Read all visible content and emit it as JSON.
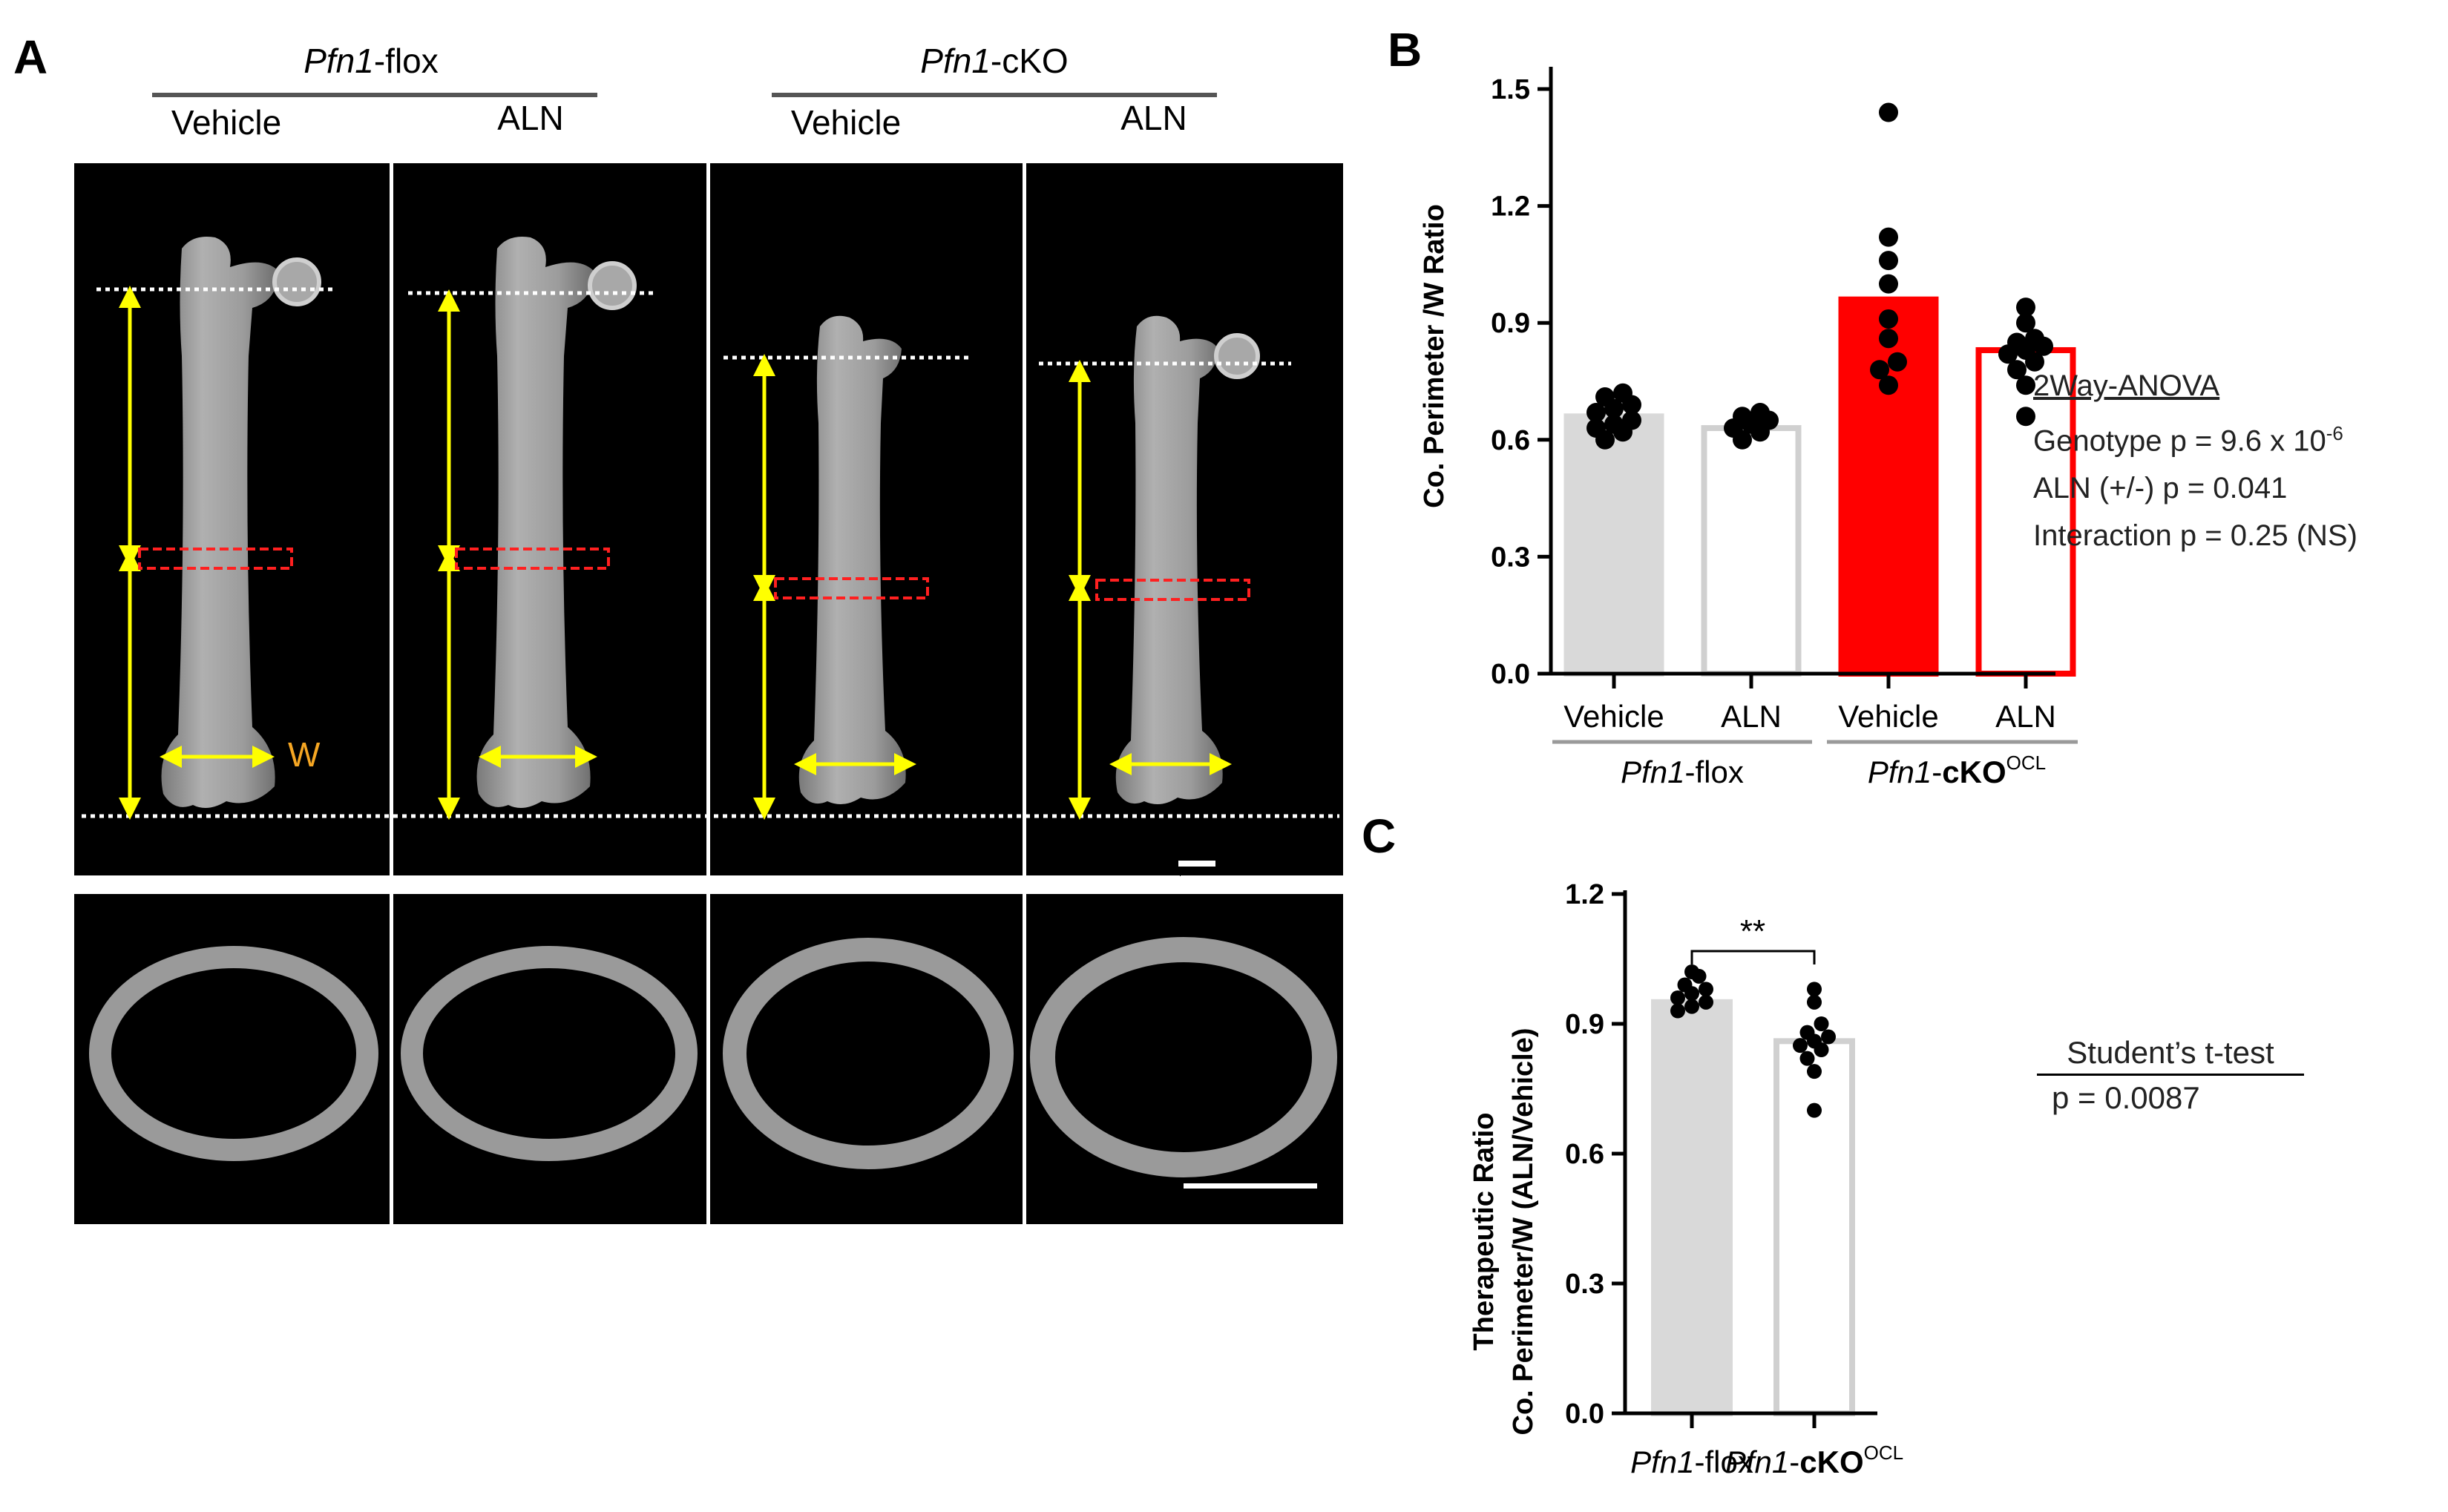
{
  "panel_a": {
    "letter": "A",
    "groups": [
      {
        "label_italic": "Pfn1",
        "label_rest": "-flox",
        "treatments": [
          "Vehicle",
          "ALN"
        ]
      },
      {
        "label_italic": "Pfn1",
        "label_rest": "-cKO",
        "treatments": [
          "Vehicle",
          "ALN"
        ]
      }
    ],
    "width_marker": "W",
    "colors": {
      "arrow": "#ffff00",
      "roi": "#ff2020",
      "w_label": "#f5a623",
      "guide": "#ffffff"
    }
  },
  "panel_b": {
    "letter": "B",
    "stats": {
      "title": "2Way-ANOVA",
      "genotype_prefix": "Genotype  p = 9.6 x 10",
      "genotype_exp": "-6",
      "aln": "ALN (+/-) p = 0.041",
      "interaction": "Interaction p = 0.25 (NS)"
    },
    "chart_data": {
      "type": "bar",
      "ylabel": "Co. Perimeter /W Ratio",
      "ylim": [
        0,
        1.5
      ],
      "yticks": [
        "0.0",
        "0.3",
        "0.6",
        "0.9",
        "1.2",
        "1.5"
      ],
      "categories": [
        "Vehicle",
        "ALN",
        "Vehicle",
        "ALN"
      ],
      "groups": [
        {
          "italic": "Pfn1",
          "rest": "-flox",
          "bold": "",
          "sup": ""
        },
        {
          "italic": "Pfn1",
          "rest": "-",
          "bold": "cKO",
          "sup": "OCL"
        }
      ],
      "values": [
        0.66,
        0.63,
        0.96,
        0.83
      ],
      "points": [
        [
          0.63,
          0.65,
          0.67,
          0.69,
          0.71,
          0.72,
          0.68,
          0.64,
          0.6,
          0.62
        ],
        [
          0.6,
          0.62,
          0.63,
          0.64,
          0.65,
          0.66,
          0.67
        ],
        [
          0.74,
          0.78,
          0.8,
          0.86,
          0.91,
          1.0,
          1.06,
          1.12,
          1.44
        ],
        [
          0.66,
          0.74,
          0.78,
          0.8,
          0.82,
          0.83,
          0.84,
          0.85,
          0.86,
          0.9,
          0.94
        ]
      ],
      "bar_fill": [
        "#d9d9d9",
        "#ffffff",
        "#ff0000",
        "#ffffff"
      ],
      "bar_stroke": [
        "#d9d9d9",
        "#d0d0d0",
        "#ff0000",
        "#ff0000"
      ]
    }
  },
  "panel_c": {
    "letter": "C",
    "stats": {
      "title": "Student’s t-test",
      "p": "p = 0.0087"
    },
    "chart_data": {
      "type": "bar",
      "ylabel_line1": "Therapeutic Ratio",
      "ylabel_line2": "Co. Perimeter/W (ALN/Vehicle)",
      "ylim": [
        0,
        1.2
      ],
      "yticks": [
        "0.0",
        "0.3",
        "0.6",
        "0.9",
        "1.2"
      ],
      "categories": [
        {
          "italic": "Pfn1",
          "rest": "-flox",
          "bold": "",
          "sup": ""
        },
        {
          "italic": "Pfn1",
          "rest": "-",
          "bold": "cKO",
          "sup": "OCL"
        }
      ],
      "values": [
        0.95,
        0.86
      ],
      "points": [
        [
          0.93,
          0.94,
          0.95,
          0.96,
          0.97,
          0.98,
          0.99,
          1.01,
          1.02
        ],
        [
          0.7,
          0.79,
          0.82,
          0.84,
          0.85,
          0.86,
          0.87,
          0.88,
          0.9,
          0.95,
          0.98
        ]
      ],
      "significance": "**",
      "bar_fill": [
        "#d9d9d9",
        "#ffffff"
      ],
      "bar_stroke": [
        "#d9d9d9",
        "#d0d0d0"
      ]
    }
  }
}
